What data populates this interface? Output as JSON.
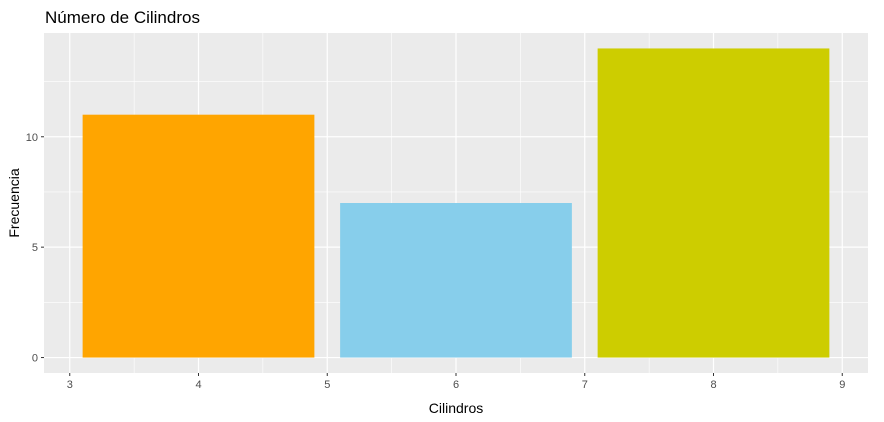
{
  "chart_data": {
    "type": "bar",
    "title": "Número de Cilindros",
    "xlabel": "Cilindros",
    "ylabel": "Frecuencia",
    "x": [
      4,
      6,
      8
    ],
    "values": [
      11,
      7,
      14
    ],
    "bar_width": 1.8,
    "colors": [
      "#FFA500",
      "#87CEEB",
      "#CDCD00"
    ],
    "xlim": [
      2.8,
      9.2
    ],
    "ylim": [
      -0.7,
      14.7
    ],
    "xticks": [
      3,
      4,
      5,
      6,
      7,
      8,
      9
    ],
    "yticks": [
      0,
      5,
      10
    ],
    "grid": true,
    "panel_background": "#EBEBEB",
    "grid_color": "#FFFFFF"
  }
}
